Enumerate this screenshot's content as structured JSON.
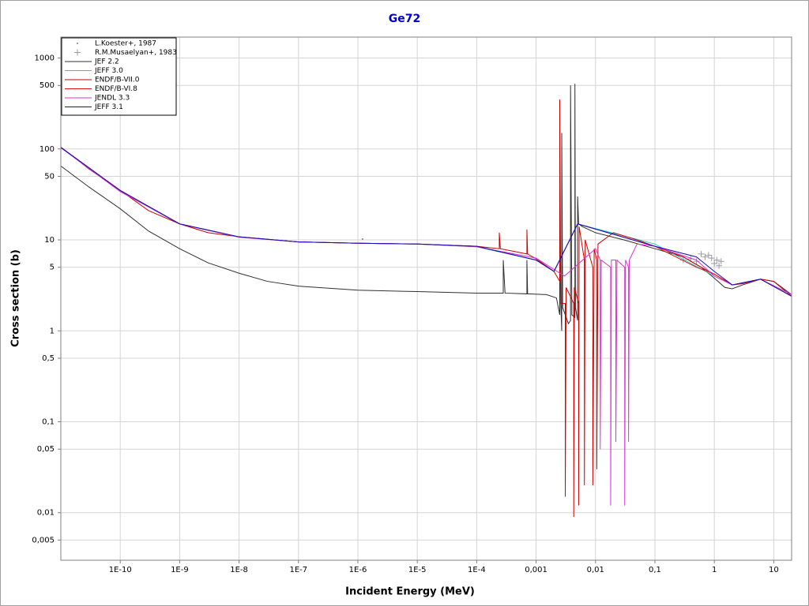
{
  "chart_data": {
    "type": "line",
    "title": "Ge72",
    "x_label": "Incident Energy (MeV)",
    "y_label": "Cross section (b)",
    "x_scale": "log",
    "y_scale": "log",
    "grid": true,
    "legend": "upper left",
    "xlim": [
      1e-11,
      20
    ],
    "ylim": [
      0.003,
      1700
    ],
    "xticks": [
      {
        "value": 1e-10,
        "label": "1E-10"
      },
      {
        "value": 1e-09,
        "label": "1E-9"
      },
      {
        "value": 1e-08,
        "label": "1E-8"
      },
      {
        "value": 1e-07,
        "label": "1E-7"
      },
      {
        "value": 1e-06,
        "label": "1E-6"
      },
      {
        "value": 1e-05,
        "label": "1E-5"
      },
      {
        "value": 0.0001,
        "label": "1E-4"
      },
      {
        "value": 0.001,
        "label": "0,001"
      },
      {
        "value": 0.01,
        "label": "0,01"
      },
      {
        "value": 0.1,
        "label": "0,1"
      },
      1,
      10
    ],
    "yticks": [
      {
        "value": 0.005,
        "label": "0,005"
      },
      {
        "value": 0.01,
        "label": "0,01"
      },
      {
        "value": 0.05,
        "label": "0,05"
      },
      {
        "value": 0.1,
        "label": "0,1"
      },
      {
        "value": 0.5,
        "label": "0,5"
      },
      1,
      5,
      10,
      50,
      100,
      500,
      1000
    ],
    "series": [
      {
        "name": "L.Koester+, 1987",
        "style": "dot",
        "color": "#808080",
        "x": [
          1.2e-06
        ],
        "values": [
          10.2
        ]
      },
      {
        "name": "R.M.Musaelyan+, 1983",
        "style": "cross",
        "color": "#9a9aa6",
        "x": [
          0.3,
          0.4,
          0.5,
          0.6,
          0.7,
          0.8,
          0.9,
          1.0,
          1.1,
          1.2,
          1.3
        ],
        "values": [
          6,
          6.2,
          5.8,
          7,
          6.5,
          6.8,
          6.3,
          5.5,
          6,
          5.2,
          5.8
        ]
      },
      {
        "name": "JEF 2.2",
        "style": "line",
        "color": "#303030",
        "x": [
          1e-11,
          3e-11,
          1e-10,
          3e-10,
          1e-09,
          3e-09,
          1e-08,
          3e-08,
          1e-07,
          1e-06,
          1e-05,
          0.0001,
          0.00028,
          0.00028,
          0.0003,
          0.0007,
          0.0007,
          0.00072,
          0.0015,
          0.0022,
          0.0025,
          0.0025,
          0.0026,
          0.0027,
          0.0027,
          0.0028,
          0.0035,
          0.0038,
          0.0038,
          0.004,
          0.0045,
          0.0045,
          0.0046,
          0.005,
          0.005,
          0.0052,
          0.006,
          0.01,
          0.03,
          0.1,
          0.3,
          0.6,
          1,
          1.5,
          2,
          3,
          6,
          10,
          20
        ],
        "values": [
          65,
          38,
          22,
          12.5,
          8,
          5.6,
          4.3,
          3.5,
          3.1,
          2.8,
          2.7,
          2.6,
          2.6,
          6,
          2.6,
          2.55,
          6,
          2.55,
          2.5,
          2.3,
          1.5,
          20,
          2,
          1,
          150,
          1.8,
          1.2,
          1.3,
          500,
          1.5,
          1.4,
          520,
          1.8,
          1.3,
          30,
          15,
          14,
          12,
          10,
          8,
          6.5,
          5,
          3.8,
          3,
          2.9,
          3.2,
          3.7,
          3.5,
          2.5
        ]
      },
      {
        "name": "JEFF 3.0",
        "style": "line",
        "color": "#20d0c0",
        "x": [
          1e-11,
          1e-10,
          1e-09,
          1e-08,
          1e-07,
          1e-06,
          1e-05,
          0.0001,
          0.001,
          0.002,
          0.005,
          0.1,
          1,
          2,
          6,
          20
        ],
        "values": [
          104,
          34,
          15,
          10.8,
          9.5,
          9.2,
          9,
          8.4,
          6,
          4.5,
          15,
          9,
          4,
          3.2,
          3.7,
          2.4
        ]
      },
      {
        "name": "ENDF/B-VII.0",
        "style": "line",
        "color": "#cc0000",
        "x": [
          1e-11,
          3e-11,
          1e-10,
          3e-10,
          1e-09,
          3e-09,
          1e-08,
          1e-07,
          1e-06,
          1e-05,
          0.0001,
          0.00024,
          0.00024,
          0.00025,
          0.0007,
          0.0007,
          0.00072,
          0.001,
          0.002,
          0.0025,
          0.0025,
          0.0026,
          0.0031,
          0.0031,
          0.0032,
          0.0043,
          0.0043,
          0.0044,
          0.0052,
          0.0052,
          0.0053,
          0.0065,
          0.0065,
          0.0067,
          0.009,
          0.009,
          0.0095,
          0.0105,
          0.0105,
          0.011,
          0.02,
          0.05,
          0.1,
          0.3,
          0.6,
          1,
          2,
          3,
          6,
          10,
          20
        ],
        "values": [
          105,
          60,
          35,
          21,
          15,
          12,
          10.8,
          9.5,
          9.2,
          9,
          8.5,
          8,
          12,
          8,
          7,
          13,
          7,
          6.2,
          4.5,
          3.5,
          350,
          2,
          2,
          0.015,
          3,
          2,
          0.009,
          3,
          2,
          0.012,
          14,
          6,
          0.02,
          10,
          5,
          0.02,
          8,
          6,
          0.03,
          9,
          12,
          10,
          8.5,
          6.5,
          5,
          4.2,
          3.2,
          3.3,
          3.7,
          3.5,
          2.4
        ]
      },
      {
        "name": "ENDF/B-VI.8",
        "style": "line",
        "color": "#e01010",
        "x": [
          1e-11,
          1e-10,
          1e-09,
          1e-08,
          1e-07,
          1e-06,
          1e-05,
          0.0001,
          0.001,
          0.002,
          0.005,
          0.1,
          0.5,
          1,
          2,
          6,
          20
        ],
        "values": [
          104,
          35,
          15,
          10.8,
          9.5,
          9.2,
          9,
          8.5,
          6,
          4.5,
          15,
          8.5,
          5,
          4.2,
          3.2,
          3.7,
          2.4
        ]
      },
      {
        "name": "JENDL 3.3",
        "style": "line",
        "color": "#e030d0",
        "x": [
          1e-11,
          1e-10,
          1e-09,
          1e-08,
          1e-07,
          1e-06,
          1e-05,
          0.0001,
          0.001,
          0.003,
          0.01,
          0.012,
          0.012,
          0.0125,
          0.018,
          0.018,
          0.0185,
          0.022,
          0.022,
          0.023,
          0.031,
          0.031,
          0.032,
          0.036,
          0.036,
          0.037,
          0.05,
          0.1,
          0.5,
          1,
          2,
          6,
          20
        ],
        "values": [
          103,
          34,
          15,
          10.7,
          9.5,
          9.2,
          9,
          8.4,
          6.3,
          4,
          8,
          6,
          0.05,
          6,
          5,
          0.012,
          6,
          6,
          0.06,
          6,
          5,
          0.012,
          6,
          5,
          0.06,
          6,
          9,
          8.5,
          6,
          4,
          3.2,
          3.7,
          2.5
        ]
      },
      {
        "name": "JEFF 3.1",
        "style": "line",
        "color": "#1010c0",
        "x": [
          1e-11,
          1e-10,
          1e-09,
          1e-08,
          1e-07,
          1e-06,
          1e-05,
          0.0001,
          0.001,
          0.002,
          0.005,
          0.1,
          0.5,
          1,
          2,
          6,
          20
        ],
        "values": [
          104,
          35,
          15,
          10.8,
          9.5,
          9.2,
          9,
          8.5,
          6,
          4.5,
          15,
          8.5,
          6.5,
          4.5,
          3.2,
          3.7,
          2.4
        ]
      }
    ]
  }
}
